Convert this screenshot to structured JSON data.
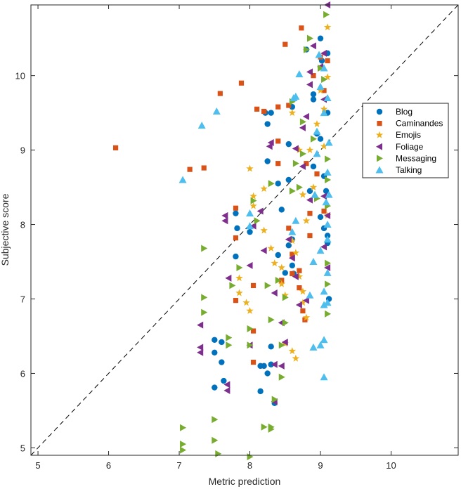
{
  "chart_data": {
    "type": "scatter",
    "xlabel": "Metric prediction",
    "ylabel": "Subjective score",
    "xlim": [
      4.9,
      10.95
    ],
    "ylim": [
      4.9,
      10.95
    ],
    "xticks": [
      5,
      6,
      7,
      8,
      9,
      10
    ],
    "yticks": [
      5,
      6,
      7,
      8,
      9,
      10
    ],
    "legend_position": "right",
    "reference_line": {
      "style": "dashed",
      "from": [
        4.9,
        4.9
      ],
      "to": [
        10.95,
        10.95
      ]
    },
    "series": [
      {
        "name": "Blog",
        "marker": "circle",
        "color": "#0072BD",
        "points": [
          [
            7.5,
            6.45
          ],
          [
            7.5,
            6.28
          ],
          [
            7.6,
            6.42
          ],
          [
            7.6,
            6.15
          ],
          [
            7.5,
            5.81
          ],
          [
            7.63,
            5.9
          ],
          [
            7.8,
            7.57
          ],
          [
            7.82,
            7.95
          ],
          [
            7.8,
            8.15
          ],
          [
            8.0,
            7.9
          ],
          [
            8.15,
            6.1
          ],
          [
            8.15,
            5.76
          ],
          [
            8.2,
            6.1
          ],
          [
            8.25,
            6.0
          ],
          [
            8.3,
            6.36
          ],
          [
            8.3,
            6.12
          ],
          [
            8.35,
            5.6
          ],
          [
            8.4,
            7.59
          ],
          [
            8.45,
            8.2
          ],
          [
            8.5,
            7.35
          ],
          [
            8.55,
            7.72
          ],
          [
            8.6,
            7.8
          ],
          [
            8.6,
            7.45
          ],
          [
            8.62,
            7.34
          ],
          [
            8.22,
            9.5
          ],
          [
            8.25,
            9.35
          ],
          [
            8.3,
            9.5
          ],
          [
            8.25,
            8.85
          ],
          [
            8.4,
            8.55
          ],
          [
            8.55,
            8.6
          ],
          [
            8.55,
            9.08
          ],
          [
            8.6,
            9.58
          ],
          [
            8.8,
            10.35
          ],
          [
            8.9,
            9.75
          ],
          [
            8.9,
            9.68
          ],
          [
            8.9,
            8.78
          ],
          [
            8.95,
            9.22
          ],
          [
            9.0,
            10.5
          ],
          [
            9.02,
            10.2
          ],
          [
            9.0,
            9.15
          ],
          [
            9.05,
            8.65
          ],
          [
            9.0,
            8.1
          ],
          [
            9.05,
            7.95
          ],
          [
            9.1,
            7.85
          ],
          [
            9.1,
            7.75
          ],
          [
            9.08,
            8.45
          ],
          [
            9.1,
            9.5
          ],
          [
            9.1,
            10.3
          ],
          [
            8.85,
            8.45
          ],
          [
            9.12,
            7.0
          ]
        ]
      },
      {
        "name": "Caminandes",
        "marker": "square",
        "color": "#D95319",
        "points": [
          [
            6.1,
            9.03
          ],
          [
            7.15,
            8.74
          ],
          [
            7.35,
            8.76
          ],
          [
            7.58,
            9.76
          ],
          [
            7.88,
            9.9
          ],
          [
            7.8,
            8.22
          ],
          [
            7.8,
            7.82
          ],
          [
            7.8,
            6.98
          ],
          [
            8.05,
            7.18
          ],
          [
            8.05,
            6.57
          ],
          [
            8.05,
            6.15
          ],
          [
            8.1,
            9.55
          ],
          [
            8.2,
            9.52
          ],
          [
            8.4,
            9.58
          ],
          [
            8.4,
            9.12
          ],
          [
            8.4,
            8.82
          ],
          [
            8.45,
            7.25
          ],
          [
            8.55,
            7.95
          ],
          [
            8.6,
            7.6
          ],
          [
            8.6,
            7.34
          ],
          [
            8.7,
            7.38
          ],
          [
            8.7,
            7.15
          ],
          [
            8.75,
            6.84
          ],
          [
            8.78,
            6.72
          ],
          [
            8.5,
            10.42
          ],
          [
            8.55,
            9.6
          ],
          [
            8.73,
            10.64
          ],
          [
            8.8,
            8.82
          ],
          [
            8.85,
            8.15
          ],
          [
            8.85,
            7.85
          ],
          [
            8.9,
            10.0
          ],
          [
            9.0,
            10.25
          ],
          [
            9.05,
            9.8
          ],
          [
            9.1,
            10.2
          ],
          [
            8.95,
            8.68
          ],
          [
            9.05,
            8.18
          ]
        ]
      },
      {
        "name": "Emojis",
        "marker": "star",
        "color": "#EDB120",
        "points": [
          [
            7.85,
            7.28
          ],
          [
            7.85,
            7.08
          ],
          [
            7.95,
            6.95
          ],
          [
            8.0,
            6.84
          ],
          [
            8.0,
            8.75
          ],
          [
            8.05,
            8.38
          ],
          [
            8.05,
            8.25
          ],
          [
            8.2,
            8.48
          ],
          [
            8.2,
            7.92
          ],
          [
            8.3,
            7.68
          ],
          [
            8.35,
            7.48
          ],
          [
            8.45,
            7.42
          ],
          [
            8.45,
            7.2
          ],
          [
            8.5,
            7.05
          ],
          [
            8.6,
            7.78
          ],
          [
            8.65,
            7.62
          ],
          [
            8.7,
            7.3
          ],
          [
            8.75,
            7.1
          ],
          [
            8.75,
            6.95
          ],
          [
            8.8,
            6.75
          ],
          [
            8.5,
            6.4
          ],
          [
            8.6,
            6.3
          ],
          [
            8.65,
            6.2
          ],
          [
            8.6,
            9.5
          ],
          [
            8.7,
            9.0
          ],
          [
            8.75,
            8.4
          ],
          [
            8.8,
            8.05
          ],
          [
            8.85,
            9.0
          ],
          [
            8.9,
            8.5
          ],
          [
            8.95,
            9.35
          ],
          [
            9.0,
            9.8
          ],
          [
            9.05,
            9.55
          ],
          [
            9.1,
            10.65
          ],
          [
            9.1,
            9.98
          ],
          [
            9.05,
            9.05
          ],
          [
            9.1,
            8.12
          ]
        ]
      },
      {
        "name": "Foliage",
        "marker": "triangle-left",
        "color": "#7E2F8E",
        "points": [
          [
            7.3,
            6.65
          ],
          [
            7.3,
            6.35
          ],
          [
            7.3,
            6.28
          ],
          [
            7.68,
            5.85
          ],
          [
            7.68,
            5.77
          ],
          [
            7.65,
            8.12
          ],
          [
            7.65,
            8.05
          ],
          [
            7.7,
            7.28
          ],
          [
            8.0,
            6.38
          ],
          [
            8.0,
            7.45
          ],
          [
            8.05,
            7.98
          ],
          [
            8.15,
            8.18
          ],
          [
            8.2,
            7.65
          ],
          [
            8.35,
            7.08
          ],
          [
            8.35,
            6.12
          ],
          [
            8.35,
            5.62
          ],
          [
            8.45,
            6.68
          ],
          [
            8.45,
            6.1
          ],
          [
            8.5,
            6.42
          ],
          [
            8.55,
            7.8
          ],
          [
            8.6,
            7.55
          ],
          [
            8.65,
            7.3
          ],
          [
            8.7,
            6.92
          ],
          [
            8.8,
            6.98
          ],
          [
            8.85,
            8.33
          ],
          [
            8.28,
            9.05
          ],
          [
            8.3,
            9.1
          ],
          [
            8.65,
            9.02
          ],
          [
            8.75,
            8.78
          ],
          [
            8.75,
            9.3
          ],
          [
            8.8,
            9.45
          ],
          [
            8.85,
            9.88
          ],
          [
            8.85,
            10.05
          ],
          [
            8.9,
            10.4
          ],
          [
            9.0,
            10.12
          ],
          [
            9.05,
            9.68
          ],
          [
            9.05,
            8.38
          ],
          [
            9.1,
            8.12
          ],
          [
            9.1,
            7.42
          ],
          [
            9.05,
            7.7
          ],
          [
            9.1,
            10.95
          ],
          [
            9.05,
            10.3
          ]
        ]
      },
      {
        "name": "Messaging",
        "marker": "triangle-right",
        "color": "#77AC30",
        "points": [
          [
            7.05,
            5.27
          ],
          [
            7.05,
            5.05
          ],
          [
            7.05,
            4.97
          ],
          [
            7.35,
            7.68
          ],
          [
            7.35,
            7.02
          ],
          [
            7.35,
            6.82
          ],
          [
            7.5,
            5.38
          ],
          [
            7.5,
            5.1
          ],
          [
            7.55,
            4.92
          ],
          [
            7.7,
            6.48
          ],
          [
            7.7,
            6.38
          ],
          [
            7.75,
            7.18
          ],
          [
            7.85,
            7.42
          ],
          [
            8.0,
            6.6
          ],
          [
            8.0,
            6.38
          ],
          [
            8.0,
            4.88
          ],
          [
            8.05,
            8.32
          ],
          [
            8.1,
            8.05
          ],
          [
            8.2,
            5.28
          ],
          [
            8.3,
            5.28
          ],
          [
            8.3,
            5.25
          ],
          [
            8.3,
            6.72
          ],
          [
            8.25,
            7.18
          ],
          [
            8.3,
            8.55
          ],
          [
            8.35,
            5.65
          ],
          [
            8.4,
            7.25
          ],
          [
            8.45,
            6.38
          ],
          [
            8.45,
            5.95
          ],
          [
            8.5,
            7.02
          ],
          [
            8.5,
            6.68
          ],
          [
            8.6,
            8.45
          ],
          [
            8.6,
            9.65
          ],
          [
            8.65,
            8.82
          ],
          [
            8.7,
            8.5
          ],
          [
            8.75,
            9.38
          ],
          [
            8.75,
            8.95
          ],
          [
            8.8,
            10.35
          ],
          [
            8.85,
            10.5
          ],
          [
            8.9,
            9.15
          ],
          [
            8.95,
            8.35
          ],
          [
            9.0,
            10.1
          ],
          [
            9.05,
            9.95
          ],
          [
            9.08,
            10.82
          ],
          [
            9.1,
            8.88
          ],
          [
            9.1,
            8.6
          ],
          [
            9.1,
            8.25
          ],
          [
            9.1,
            7.48
          ],
          [
            9.1,
            7.2
          ],
          [
            9.1,
            6.8
          ]
        ]
      },
      {
        "name": "Talking",
        "marker": "triangle-up",
        "color": "#4DBEEE",
        "points": [
          [
            7.05,
            8.6
          ],
          [
            7.32,
            9.33
          ],
          [
            7.53,
            9.52
          ],
          [
            8.0,
            7.98
          ],
          [
            8.0,
            8.15
          ],
          [
            8.7,
            10.02
          ],
          [
            8.62,
            9.7
          ],
          [
            8.65,
            8.05
          ],
          [
            8.6,
            7.9
          ],
          [
            8.85,
            7.05
          ],
          [
            8.9,
            7.5
          ],
          [
            8.9,
            6.35
          ],
          [
            9.0,
            6.38
          ],
          [
            9.05,
            6.45
          ],
          [
            9.05,
            5.95
          ],
          [
            9.05,
            6.92
          ],
          [
            9.05,
            7.1
          ],
          [
            9.1,
            7.35
          ],
          [
            9.1,
            8.0
          ],
          [
            9.08,
            8.3
          ],
          [
            9.1,
            8.7
          ],
          [
            9.12,
            9.1
          ],
          [
            9.05,
            9.5
          ],
          [
            9.1,
            9.7
          ],
          [
            9.0,
            9.85
          ],
          [
            9.05,
            10.1
          ],
          [
            8.95,
            8.95
          ],
          [
            8.92,
            8.4
          ],
          [
            9.0,
            7.65
          ],
          [
            9.1,
            7.8
          ],
          [
            9.12,
            8.4
          ],
          [
            8.95,
            9.25
          ],
          [
            8.98,
            10.28
          ],
          [
            8.65,
            9.72
          ],
          [
            9.1,
            6.95
          ]
        ]
      }
    ]
  }
}
